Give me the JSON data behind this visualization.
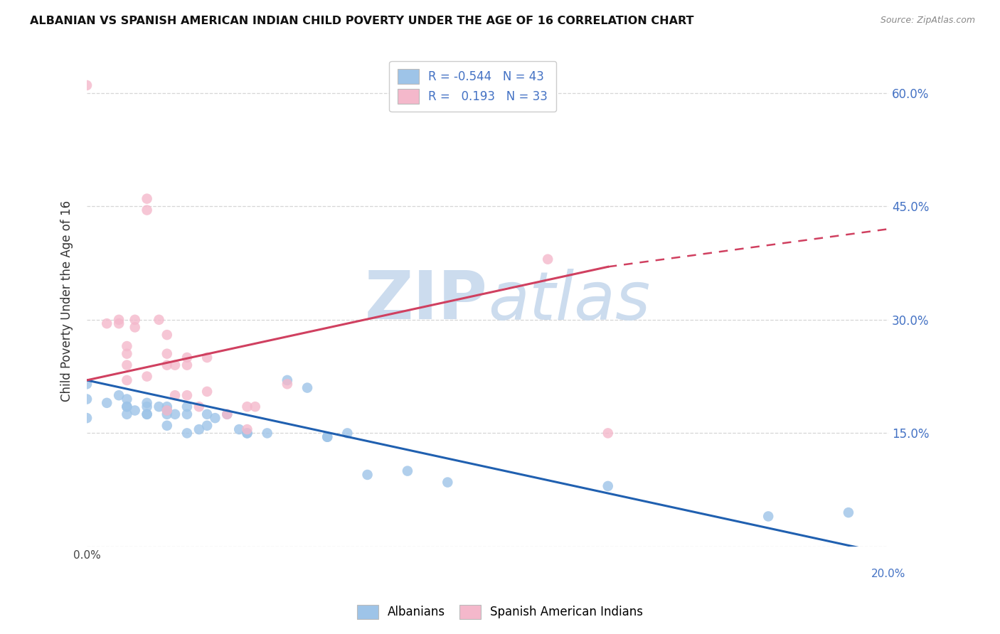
{
  "title": "ALBANIAN VS SPANISH AMERICAN INDIAN CHILD POVERTY UNDER THE AGE OF 16 CORRELATION CHART",
  "source": "Source: ZipAtlas.com",
  "ylabel": "Child Poverty Under the Age of 16",
  "xlim": [
    0.0,
    0.2
  ],
  "ylim": [
    0.0,
    0.65
  ],
  "yticks": [
    0.0,
    0.15,
    0.3,
    0.45,
    0.6
  ],
  "xticks": [
    0.0,
    0.05,
    0.1,
    0.15,
    0.2
  ],
  "blue_color": "#9ec4e8",
  "pink_color": "#f4b8cb",
  "blue_line_color": "#2060b0",
  "pink_line_color": "#d04060",
  "blue_R": -0.544,
  "blue_N": 43,
  "pink_R": 0.193,
  "pink_N": 33,
  "watermark_color": "#ccdcee",
  "blue_points_x": [
    0.0,
    0.0,
    0.0,
    0.005,
    0.008,
    0.01,
    0.01,
    0.01,
    0.01,
    0.012,
    0.015,
    0.015,
    0.015,
    0.015,
    0.018,
    0.02,
    0.02,
    0.02,
    0.02,
    0.022,
    0.025,
    0.025,
    0.025,
    0.028,
    0.03,
    0.03,
    0.032,
    0.035,
    0.038,
    0.04,
    0.04,
    0.045,
    0.05,
    0.055,
    0.06,
    0.06,
    0.065,
    0.07,
    0.08,
    0.09,
    0.13,
    0.17,
    0.19
  ],
  "blue_points_y": [
    0.215,
    0.195,
    0.17,
    0.19,
    0.2,
    0.195,
    0.185,
    0.185,
    0.175,
    0.18,
    0.19,
    0.185,
    0.175,
    0.175,
    0.185,
    0.185,
    0.18,
    0.16,
    0.175,
    0.175,
    0.15,
    0.185,
    0.175,
    0.155,
    0.175,
    0.16,
    0.17,
    0.175,
    0.155,
    0.15,
    0.15,
    0.15,
    0.22,
    0.21,
    0.145,
    0.145,
    0.15,
    0.095,
    0.1,
    0.085,
    0.08,
    0.04,
    0.045
  ],
  "pink_points_x": [
    0.0,
    0.005,
    0.008,
    0.008,
    0.01,
    0.01,
    0.01,
    0.01,
    0.012,
    0.012,
    0.015,
    0.015,
    0.015,
    0.018,
    0.02,
    0.02,
    0.02,
    0.02,
    0.022,
    0.022,
    0.025,
    0.025,
    0.025,
    0.028,
    0.03,
    0.03,
    0.035,
    0.04,
    0.04,
    0.042,
    0.05,
    0.115,
    0.13
  ],
  "pink_points_y": [
    0.61,
    0.295,
    0.295,
    0.3,
    0.255,
    0.265,
    0.22,
    0.24,
    0.29,
    0.3,
    0.445,
    0.46,
    0.225,
    0.3,
    0.24,
    0.255,
    0.28,
    0.18,
    0.2,
    0.24,
    0.2,
    0.25,
    0.24,
    0.185,
    0.205,
    0.25,
    0.175,
    0.155,
    0.185,
    0.185,
    0.215,
    0.38,
    0.15
  ],
  "blue_line_x0": 0.0,
  "blue_line_y0": 0.22,
  "blue_line_x1": 0.2,
  "blue_line_y1": -0.01,
  "pink_line_x0": 0.0,
  "pink_line_y0": 0.22,
  "pink_line_x1_solid": 0.13,
  "pink_line_y1_solid": 0.37,
  "pink_line_x1_dash": 0.2,
  "pink_line_y1_dash": 0.42
}
